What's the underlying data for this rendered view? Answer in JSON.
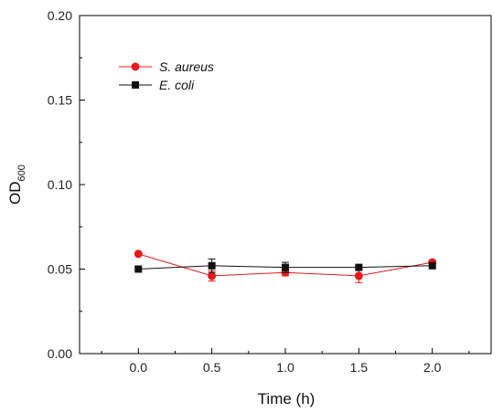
{
  "chart_data": {
    "type": "line",
    "xlabel": "Time (h)",
    "ylabel": {
      "main": "OD",
      "sub": "600"
    },
    "xlim": [
      -0.4,
      2.4
    ],
    "ylim": [
      0.0,
      0.2
    ],
    "xticks": [
      "0.0",
      "0.5",
      "1.0",
      "1.5",
      "2.0"
    ],
    "yticks": [
      "0.00",
      "0.05",
      "0.10",
      "0.15",
      "0.20"
    ],
    "grid": false,
    "legend_position": "top-left",
    "series": [
      {
        "name": "S. aureus",
        "marker": "circle",
        "color": "#e8171b",
        "x": [
          0.0,
          0.5,
          1.0,
          1.5,
          2.0
        ],
        "y": [
          0.059,
          0.046,
          0.048,
          0.046,
          0.054
        ],
        "error": [
          0.0,
          0.003,
          0.002,
          0.004,
          0.0
        ]
      },
      {
        "name": "E. coli",
        "marker": "square",
        "color": "#111111",
        "x": [
          0.0,
          0.5,
          1.0,
          1.5,
          2.0
        ],
        "y": [
          0.05,
          0.052,
          0.051,
          0.051,
          0.052
        ],
        "error": [
          0.0,
          0.004,
          0.003,
          0.0,
          0.0
        ]
      }
    ]
  }
}
